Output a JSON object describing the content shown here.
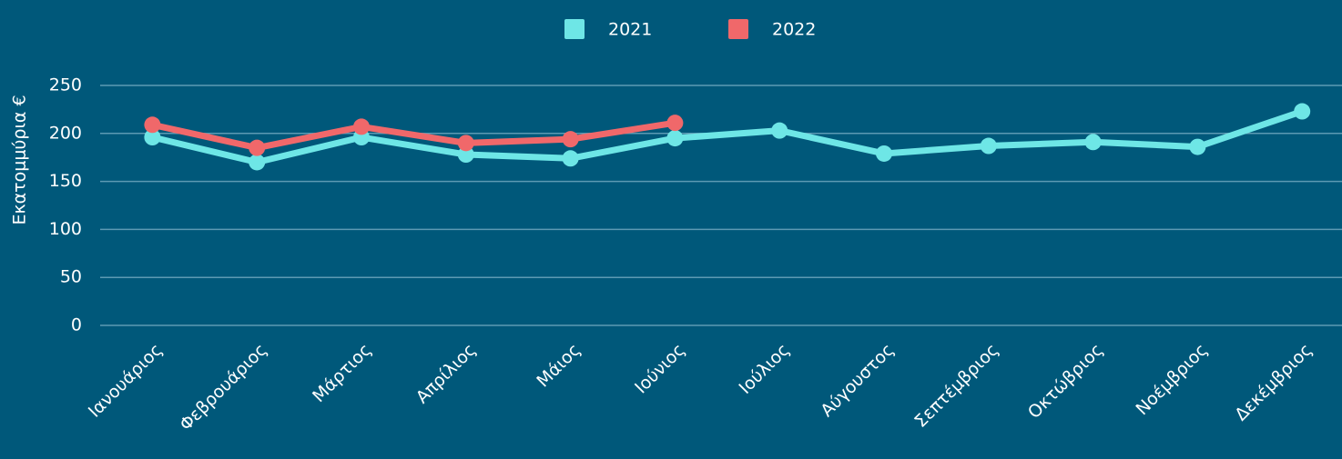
{
  "chart_data": {
    "type": "line",
    "y_label": "Εκατομμύρια €",
    "categories": [
      "Ιανουάριος",
      "Φεβρουάριος",
      "Μάρτιος",
      "Απρίλιος",
      "Μάιος",
      "Ιούνιος",
      "Ιούλιος",
      "Αύγουστος",
      "Σεπτέμβριος",
      "Οκτώβριος",
      "Νοέμβριος",
      "Δεκέμβριος"
    ],
    "series": [
      {
        "name": "2021",
        "color": "#6ee6e6",
        "values": [
          196,
          170,
          196,
          178,
          174,
          195,
          203,
          179,
          187,
          191,
          186,
          223
        ]
      },
      {
        "name": "2022",
        "color": "#f0686a",
        "values": [
          209,
          185,
          207,
          190,
          194,
          211,
          null,
          null,
          null,
          null,
          null,
          null
        ]
      }
    ],
    "ylim": [
      0,
      250
    ],
    "yticks": [
      0,
      50,
      100,
      150,
      200,
      250
    ],
    "grid": true,
    "legend": "top"
  }
}
